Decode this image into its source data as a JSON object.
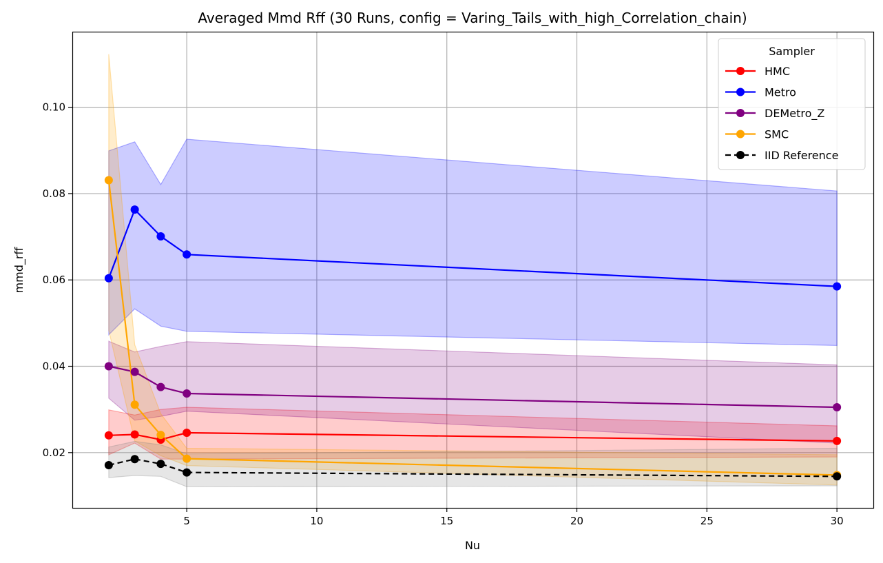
{
  "chart_data": {
    "type": "line",
    "title": "Averaged Mmd Rff (30 Runs, config = Varing_Tails_with_high_Correlation_chain)",
    "xlabel": "Nu",
    "ylabel": "mmd_rff",
    "xlim": [
      0.6,
      31.4
    ],
    "ylim": [
      0.0072,
      0.1175
    ],
    "x_ticks": [
      5,
      10,
      15,
      20,
      25,
      30
    ],
    "y_ticks": [
      0.02,
      0.04,
      0.06,
      0.08,
      0.1
    ],
    "x_tick_labels": [
      "5",
      "10",
      "15",
      "20",
      "25",
      "30"
    ],
    "y_tick_labels": [
      "0.02",
      "0.04",
      "0.06",
      "0.08",
      "0.10"
    ],
    "grid": true,
    "legend": {
      "title": "Sampler",
      "position": "top-right"
    },
    "x": [
      2,
      3,
      4,
      5,
      30
    ],
    "series": [
      {
        "name": "HMC",
        "color": "#ff0000",
        "dash": false,
        "values": [
          0.024,
          0.0242,
          0.023,
          0.0246,
          0.0227
        ],
        "band_upper": [
          0.0299,
          0.0287,
          0.03,
          0.0305,
          0.0262
        ],
        "band_lower": [
          0.0195,
          0.0222,
          0.0185,
          0.0185,
          0.019
        ]
      },
      {
        "name": "Metro",
        "color": "#0000ff",
        "dash": false,
        "values": [
          0.0604,
          0.0763,
          0.0701,
          0.0659,
          0.0585
        ],
        "band_upper": [
          0.0899,
          0.092,
          0.0821,
          0.0926,
          0.0806
        ],
        "band_lower": [
          0.0473,
          0.0533,
          0.0493,
          0.0481,
          0.0448
        ]
      },
      {
        "name": "DEMetro_Z",
        "color": "#800080",
        "dash": false,
        "values": [
          0.04,
          0.0387,
          0.0352,
          0.0337,
          0.0305
        ],
        "band_upper": [
          0.0458,
          0.0433,
          0.0446,
          0.0457,
          0.0403
        ],
        "band_lower": [
          0.0326,
          0.0275,
          0.0284,
          0.0296,
          0.0222
        ]
      },
      {
        "name": "SMC",
        "color": "#ffa500",
        "dash": false,
        "values": [
          0.0831,
          0.0311,
          0.0241,
          0.0186,
          0.0148
        ],
        "band_upper": [
          0.1123,
          0.045,
          0.029,
          0.021,
          0.0195
        ],
        "band_lower": [
          0.0483,
          0.0227,
          0.0193,
          0.017,
          0.0125
        ]
      },
      {
        "name": "IID Reference",
        "color": "#000000",
        "dash": true,
        "values": [
          0.0171,
          0.0185,
          0.0174,
          0.0154,
          0.0145
        ],
        "band_upper": [
          0.0213,
          0.0226,
          0.0218,
          0.0197,
          0.021
        ],
        "band_lower": [
          0.0142,
          0.0147,
          0.0145,
          0.0121,
          0.0123
        ]
      }
    ]
  }
}
